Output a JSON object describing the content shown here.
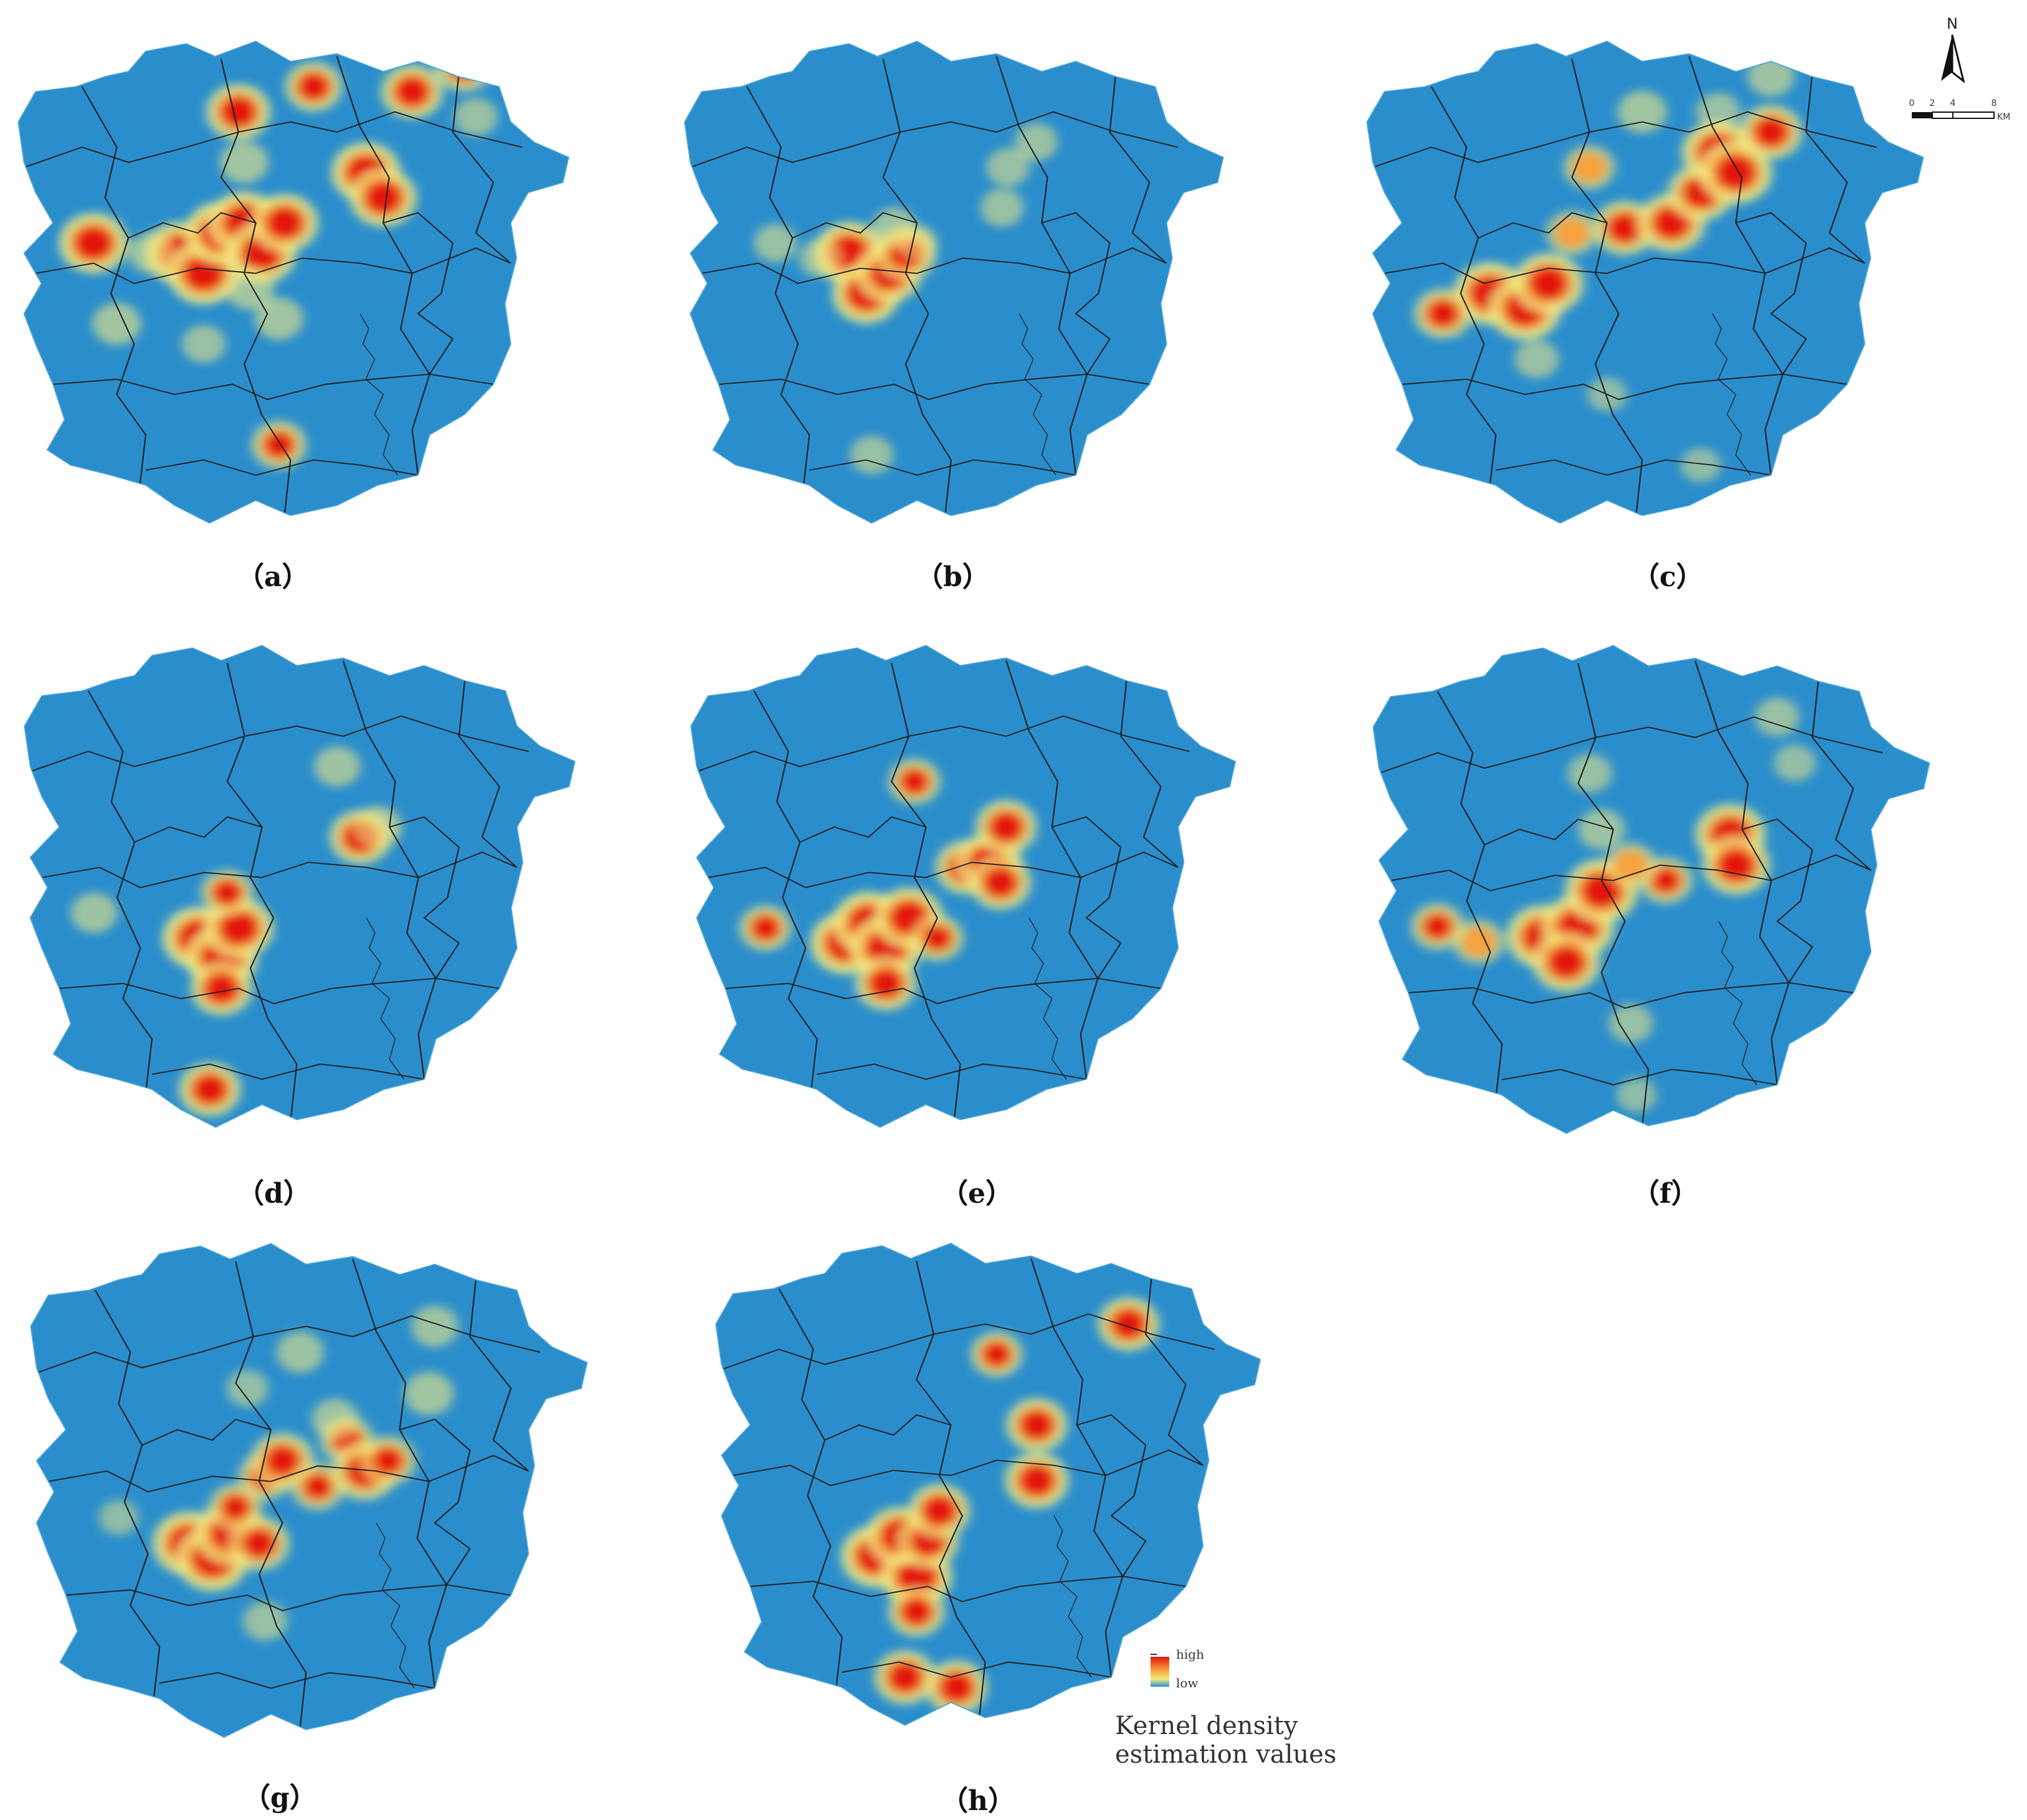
{
  "colors": {
    "background": "#2B8ECC",
    "boundary": "#1A1A1A",
    "low": "#F2EA83",
    "mid": "#F6A23C",
    "high": "#E3170F"
  },
  "panels": [
    {
      "label": "（a）",
      "hotspots": [
        {
          "u": 0.14,
          "v": 0.42,
          "i": 0.95
        },
        {
          "u": 0.29,
          "v": 0.44,
          "i": 1.0
        },
        {
          "u": 0.33,
          "v": 0.48,
          "i": 1.0
        },
        {
          "u": 0.36,
          "v": 0.4,
          "i": 1.0
        },
        {
          "u": 0.4,
          "v": 0.38,
          "i": 1.0
        },
        {
          "u": 0.43,
          "v": 0.44,
          "i": 0.95
        },
        {
          "u": 0.47,
          "v": 0.38,
          "i": 0.9
        },
        {
          "u": 0.39,
          "v": 0.16,
          "i": 0.85
        },
        {
          "u": 0.52,
          "v": 0.11,
          "i": 0.7
        },
        {
          "u": 0.4,
          "v": 0.26,
          "i": 0.5
        },
        {
          "u": 0.61,
          "v": 0.28,
          "i": 0.95
        },
        {
          "u": 0.64,
          "v": 0.33,
          "i": 0.9
        },
        {
          "u": 0.69,
          "v": 0.12,
          "i": 0.8
        },
        {
          "u": 0.78,
          "v": 0.07,
          "i": 0.7
        },
        {
          "u": 0.8,
          "v": 0.17,
          "i": 0.4
        },
        {
          "u": 0.46,
          "v": 0.57,
          "i": 0.5
        },
        {
          "u": 0.46,
          "v": 0.82,
          "i": 0.65
        },
        {
          "u": 0.18,
          "v": 0.58,
          "i": 0.5
        },
        {
          "u": 0.24,
          "v": 0.44,
          "i": 0.45
        },
        {
          "u": 0.33,
          "v": 0.62,
          "i": 0.4
        },
        {
          "u": 0.41,
          "v": 0.51,
          "i": 0.5
        }
      ]
    },
    {
      "label": "（b）",
      "hotspots": [
        {
          "u": 0.3,
          "v": 0.44,
          "i": 1.0
        },
        {
          "u": 0.33,
          "v": 0.52,
          "i": 0.95
        },
        {
          "u": 0.37,
          "v": 0.48,
          "i": 0.9
        },
        {
          "u": 0.4,
          "v": 0.44,
          "i": 0.8
        },
        {
          "u": 0.38,
          "v": 0.39,
          "i": 0.45
        },
        {
          "u": 0.17,
          "v": 0.42,
          "i": 0.4
        },
        {
          "u": 0.25,
          "v": 0.45,
          "i": 0.4
        },
        {
          "u": 0.57,
          "v": 0.35,
          "i": 0.4
        },
        {
          "u": 0.58,
          "v": 0.27,
          "i": 0.4
        },
        {
          "u": 0.63,
          "v": 0.22,
          "i": 0.4
        },
        {
          "u": 0.34,
          "v": 0.84,
          "i": 0.4
        },
        {
          "u": 0.42,
          "v": 0.42,
          "i": 0.35
        }
      ]
    },
    {
      "label": "（c）",
      "hotspots": [
        {
          "u": 0.22,
          "v": 0.52,
          "i": 1.0
        },
        {
          "u": 0.28,
          "v": 0.55,
          "i": 1.0
        },
        {
          "u": 0.32,
          "v": 0.5,
          "i": 0.95
        },
        {
          "u": 0.14,
          "v": 0.56,
          "i": 0.7
        },
        {
          "u": 0.45,
          "v": 0.39,
          "i": 0.8
        },
        {
          "u": 0.53,
          "v": 0.38,
          "i": 0.9
        },
        {
          "u": 0.58,
          "v": 0.32,
          "i": 0.85
        },
        {
          "u": 0.61,
          "v": 0.24,
          "i": 1.0
        },
        {
          "u": 0.64,
          "v": 0.28,
          "i": 1.0
        },
        {
          "u": 0.7,
          "v": 0.2,
          "i": 0.8
        },
        {
          "u": 0.39,
          "v": 0.27,
          "i": 0.55
        },
        {
          "u": 0.36,
          "v": 0.4,
          "i": 0.55
        },
        {
          "u": 0.48,
          "v": 0.16,
          "i": 0.5
        },
        {
          "u": 0.61,
          "v": 0.16,
          "i": 0.4
        },
        {
          "u": 0.7,
          "v": 0.09,
          "i": 0.45
        },
        {
          "u": 0.3,
          "v": 0.65,
          "i": 0.4
        },
        {
          "u": 0.42,
          "v": 0.72,
          "i": 0.3
        },
        {
          "u": 0.58,
          "v": 0.86,
          "i": 0.3
        }
      ]
    },
    {
      "label": "（d）",
      "hotspots": [
        {
          "u": 0.31,
          "v": 0.6,
          "i": 1.0
        },
        {
          "u": 0.35,
          "v": 0.64,
          "i": 1.0
        },
        {
          "u": 0.38,
          "v": 0.58,
          "i": 0.95
        },
        {
          "u": 0.35,
          "v": 0.7,
          "i": 0.8
        },
        {
          "u": 0.36,
          "v": 0.51,
          "i": 0.6
        },
        {
          "u": 0.59,
          "v": 0.4,
          "i": 0.8
        },
        {
          "u": 0.62,
          "v": 0.38,
          "i": 0.5
        },
        {
          "u": 0.55,
          "v": 0.26,
          "i": 0.45
        },
        {
          "u": 0.13,
          "v": 0.55,
          "i": 0.45
        },
        {
          "u": 0.33,
          "v": 0.9,
          "i": 0.8
        }
      ]
    },
    {
      "label": "（e）",
      "hotspots": [
        {
          "u": 0.28,
          "v": 0.61,
          "i": 1.0
        },
        {
          "u": 0.32,
          "v": 0.57,
          "i": 1.0
        },
        {
          "u": 0.35,
          "v": 0.62,
          "i": 1.0
        },
        {
          "u": 0.39,
          "v": 0.56,
          "i": 0.95
        },
        {
          "u": 0.35,
          "v": 0.69,
          "i": 0.8
        },
        {
          "u": 0.44,
          "v": 0.6,
          "i": 0.6
        },
        {
          "u": 0.14,
          "v": 0.58,
          "i": 0.6
        },
        {
          "u": 0.4,
          "v": 0.29,
          "i": 0.6
        },
        {
          "u": 0.49,
          "v": 0.46,
          "i": 0.8
        },
        {
          "u": 0.53,
          "v": 0.45,
          "i": 0.9
        },
        {
          "u": 0.55,
          "v": 0.49,
          "i": 0.8
        },
        {
          "u": 0.56,
          "v": 0.38,
          "i": 0.8
        }
      ]
    },
    {
      "label": "（f）",
      "hotspots": [
        {
          "u": 0.3,
          "v": 0.59,
          "i": 1.0
        },
        {
          "u": 0.36,
          "v": 0.57,
          "i": 1.0
        },
        {
          "u": 0.4,
          "v": 0.5,
          "i": 1.0
        },
        {
          "u": 0.34,
          "v": 0.64,
          "i": 0.9
        },
        {
          "u": 0.12,
          "v": 0.57,
          "i": 0.6
        },
        {
          "u": 0.19,
          "v": 0.6,
          "i": 0.55
        },
        {
          "u": 0.51,
          "v": 0.48,
          "i": 0.6
        },
        {
          "u": 0.45,
          "v": 0.45,
          "i": 0.55
        },
        {
          "u": 0.62,
          "v": 0.39,
          "i": 0.95
        },
        {
          "u": 0.63,
          "v": 0.45,
          "i": 0.9
        },
        {
          "u": 0.4,
          "v": 0.38,
          "i": 0.45
        },
        {
          "u": 0.38,
          "v": 0.27,
          "i": 0.4
        },
        {
          "u": 0.7,
          "v": 0.16,
          "i": 0.4
        },
        {
          "u": 0.73,
          "v": 0.25,
          "i": 0.35
        },
        {
          "u": 0.45,
          "v": 0.76,
          "i": 0.4
        },
        {
          "u": 0.46,
          "v": 0.9,
          "i": 0.3
        }
      ]
    },
    {
      "label": "（g）",
      "hotspots": [
        {
          "u": 0.28,
          "v": 0.6,
          "i": 1.0
        },
        {
          "u": 0.32,
          "v": 0.63,
          "i": 1.0
        },
        {
          "u": 0.35,
          "v": 0.58,
          "i": 0.95
        },
        {
          "u": 0.4,
          "v": 0.6,
          "i": 0.75
        },
        {
          "u": 0.36,
          "v": 0.53,
          "i": 0.6
        },
        {
          "u": 0.41,
          "v": 0.47,
          "i": 0.6
        },
        {
          "u": 0.44,
          "v": 0.44,
          "i": 0.8
        },
        {
          "u": 0.5,
          "v": 0.49,
          "i": 0.6
        },
        {
          "u": 0.55,
          "v": 0.4,
          "i": 0.6
        },
        {
          "u": 0.58,
          "v": 0.46,
          "i": 0.85
        },
        {
          "u": 0.62,
          "v": 0.44,
          "i": 0.65
        },
        {
          "u": 0.53,
          "v": 0.36,
          "i": 0.45
        },
        {
          "u": 0.47,
          "v": 0.23,
          "i": 0.45
        },
        {
          "u": 0.7,
          "v": 0.18,
          "i": 0.45
        },
        {
          "u": 0.69,
          "v": 0.31,
          "i": 0.5
        },
        {
          "u": 0.41,
          "v": 0.75,
          "i": 0.4
        },
        {
          "u": 0.16,
          "v": 0.55,
          "i": 0.3
        },
        {
          "u": 0.38,
          "v": 0.3,
          "i": 0.35
        }
      ]
    },
    {
      "label": "（h）",
      "hotspots": [
        {
          "u": 0.29,
          "v": 0.64,
          "i": 1.0
        },
        {
          "u": 0.36,
          "v": 0.68,
          "i": 1.0
        },
        {
          "u": 0.33,
          "v": 0.6,
          "i": 0.9
        },
        {
          "u": 0.38,
          "v": 0.61,
          "i": 0.8
        },
        {
          "u": 0.4,
          "v": 0.55,
          "i": 0.8
        },
        {
          "u": 0.36,
          "v": 0.75,
          "i": 0.7
        },
        {
          "u": 0.5,
          "v": 0.24,
          "i": 0.6
        },
        {
          "u": 0.57,
          "v": 0.38,
          "i": 0.8
        },
        {
          "u": 0.57,
          "v": 0.49,
          "i": 0.85
        },
        {
          "u": 0.73,
          "v": 0.18,
          "i": 0.8
        },
        {
          "u": 0.34,
          "v": 0.88,
          "i": 0.8
        },
        {
          "u": 0.43,
          "v": 0.9,
          "i": 0.8
        }
      ]
    }
  ],
  "north_arrow": {
    "label": "N",
    "icon": "north-arrow-icon"
  },
  "scale_bar": {
    "ticks": [
      "0",
      "2",
      "4",
      "8"
    ],
    "unit": "KM"
  },
  "legend": {
    "high_label": "high",
    "low_label": "low",
    "title": "Kernel density estimation values"
  }
}
